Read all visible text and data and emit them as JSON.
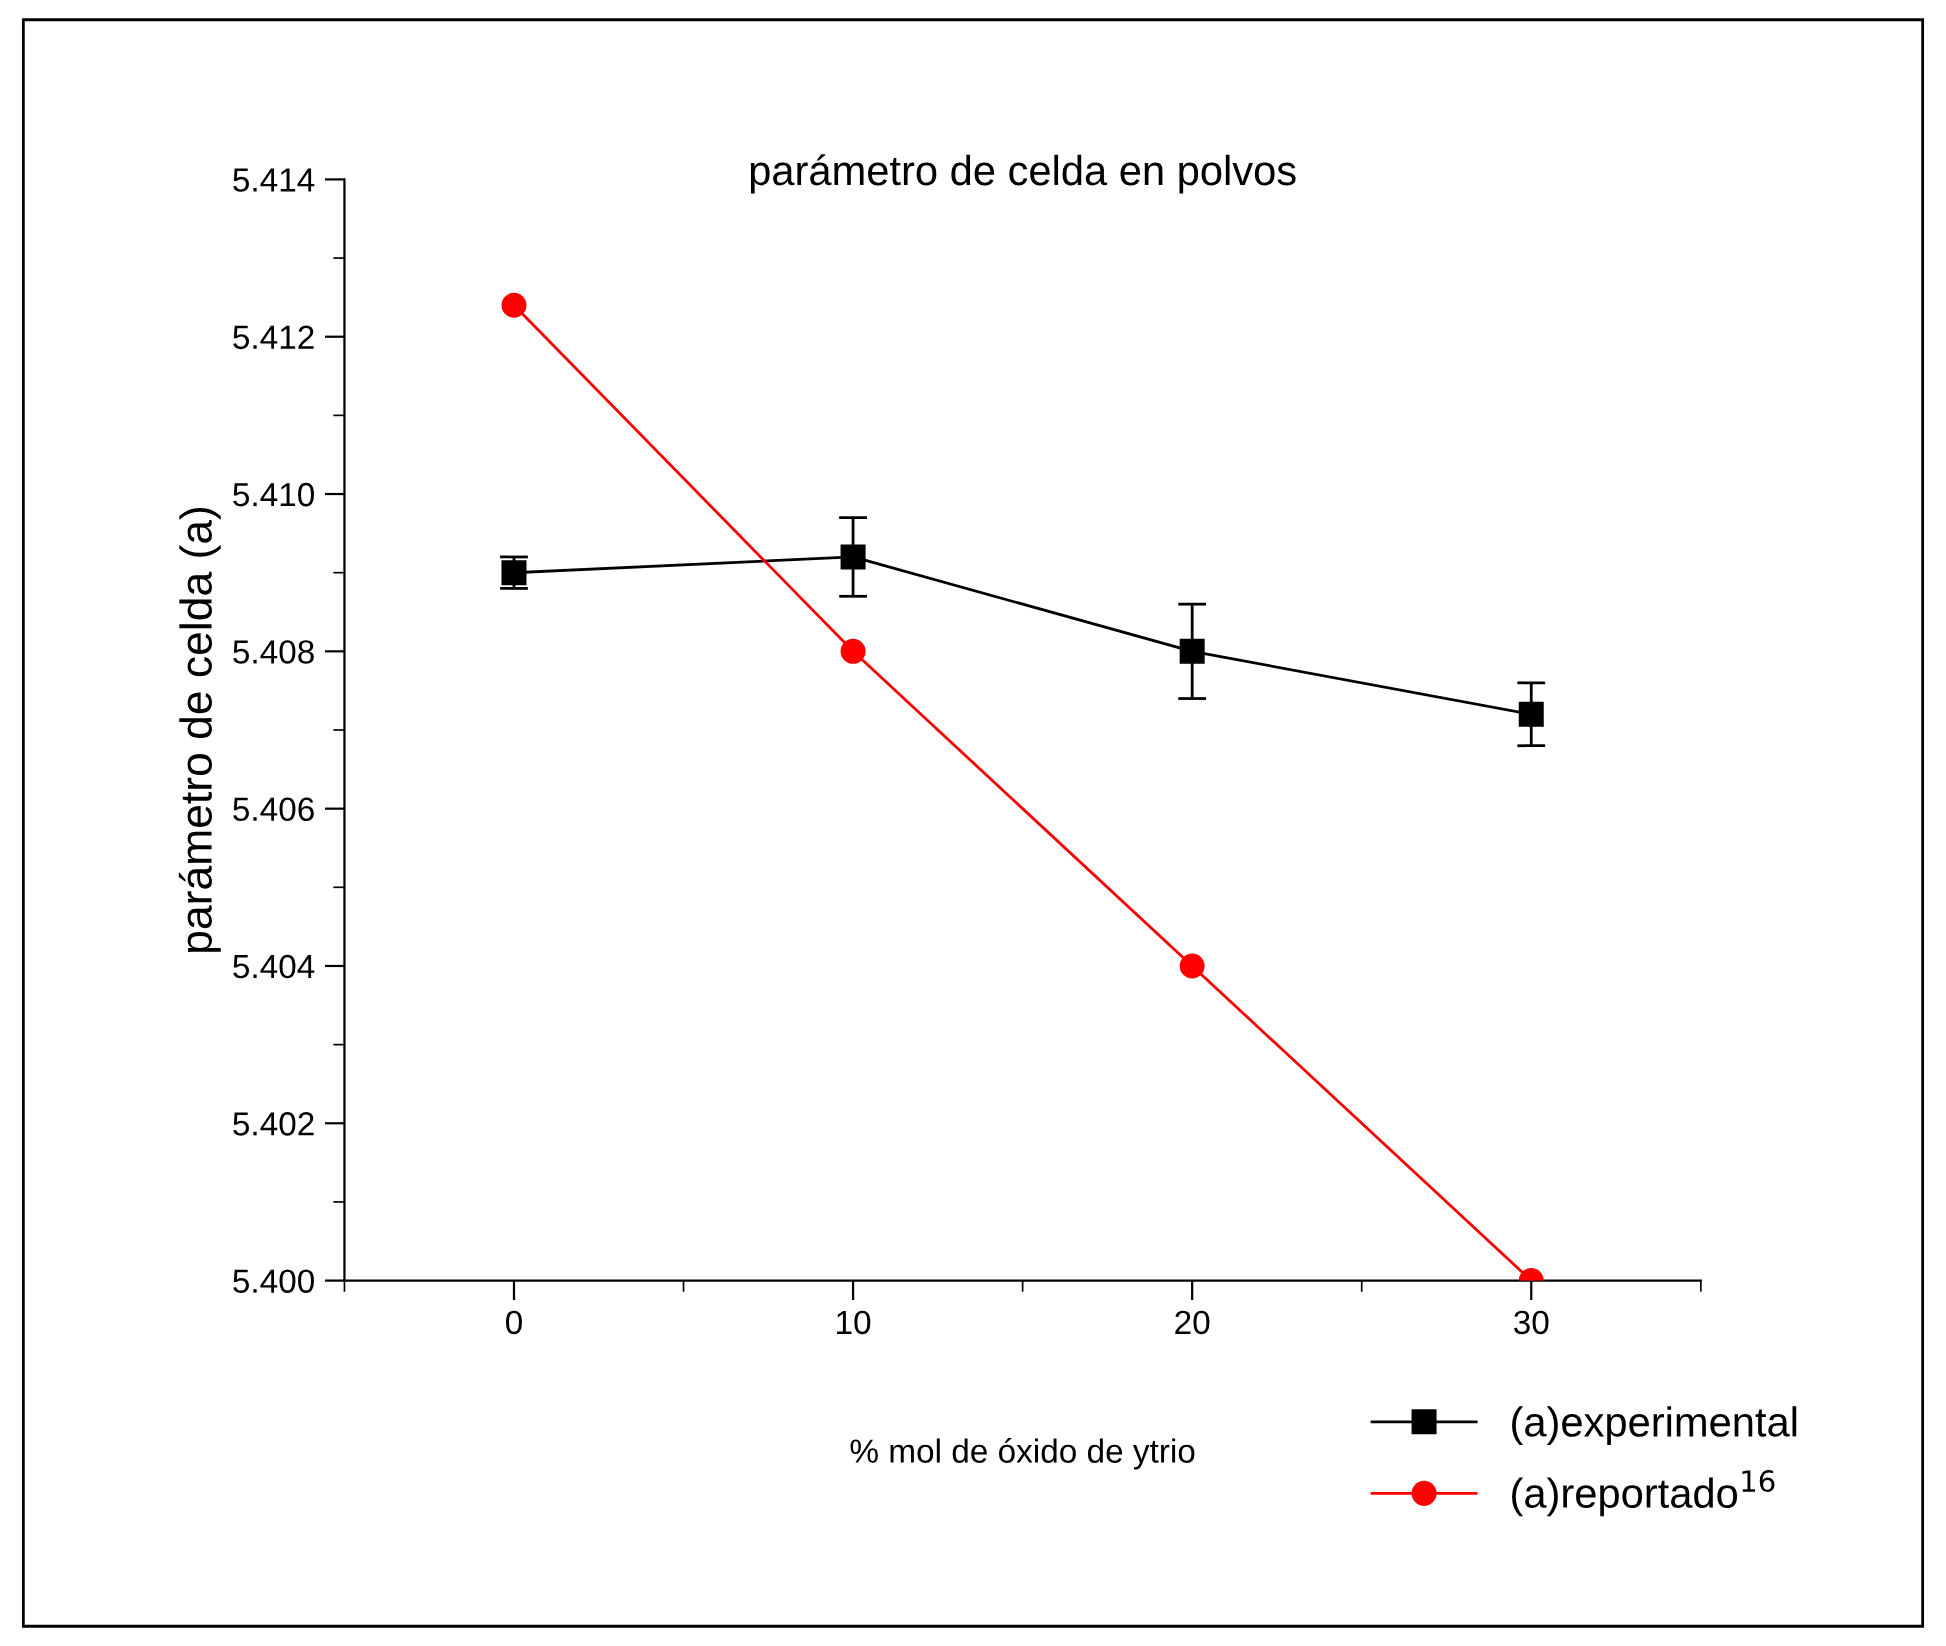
{
  "chart_data": {
    "type": "line",
    "title": "parámetro de celda en polvos",
    "xlabel": "% mol de óxido de ytrio",
    "ylabel": "parámetro de celda (a)",
    "x": [
      0,
      10,
      20,
      30
    ],
    "series": [
      {
        "name": "(a)experimental",
        "color": "#000000",
        "marker": "square",
        "values": [
          5.409,
          5.4092,
          5.408,
          5.4072
        ],
        "errors": [
          0.0002,
          0.0005,
          0.0006,
          0.0004
        ]
      },
      {
        "name": "(a)reportado$^{16}$",
        "color": "#ff0000",
        "marker": "circle",
        "values": [
          5.4124,
          5.408,
          5.404,
          5.4
        ]
      }
    ],
    "xlim": [
      -5,
      35
    ],
    "xticks": [
      0,
      10,
      20,
      30
    ],
    "ylim": [
      5.4,
      5.414
    ],
    "yticks": [
      {
        "value": 5.4,
        "label": "5.400"
      },
      {
        "value": 5.402,
        "label": "5.402"
      },
      {
        "value": 5.404,
        "label": "5.404"
      },
      {
        "value": 5.406,
        "label": "5.406"
      },
      {
        "value": 5.408,
        "label": "5.408"
      },
      {
        "value": 5.41,
        "label": "5.410"
      },
      {
        "value": 5.412,
        "label": "5.412"
      },
      {
        "value": 5.414,
        "label": "5.414"
      }
    ],
    "grid": false,
    "legend": "bottom right",
    "line_style": "solid"
  }
}
